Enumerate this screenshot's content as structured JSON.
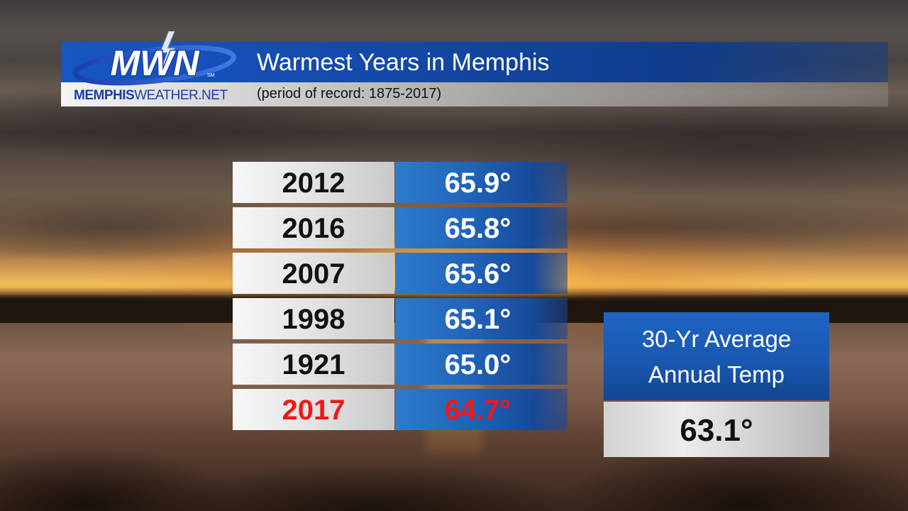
{
  "header": {
    "title": "Warmest Years in Memphis",
    "subtitle": "(period of record: 1875-2017)"
  },
  "logo": {
    "text": "MWN",
    "url_part1": "MEMPHIS",
    "url_part2": "WEATHER.NET",
    "mark": "SM"
  },
  "rankings": [
    {
      "year": "2012",
      "temp": "65.9°",
      "highlight": false
    },
    {
      "year": "2016",
      "temp": "65.8°",
      "highlight": false
    },
    {
      "year": "2007",
      "temp": "65.6°",
      "highlight": false
    },
    {
      "year": "1998",
      "temp": "65.1°",
      "highlight": false
    },
    {
      "year": "1921",
      "temp": "65.0°",
      "highlight": false
    },
    {
      "year": "2017",
      "temp": "64.7°",
      "highlight": true
    }
  ],
  "average": {
    "label_line1": "30-Yr Average",
    "label_line2": "Annual Temp",
    "value": "63.1°"
  },
  "colors": {
    "highlight": "#f01818",
    "brand_blue": "#1448a8"
  }
}
